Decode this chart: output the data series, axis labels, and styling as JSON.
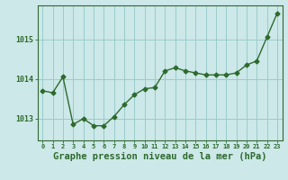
{
  "x": [
    0,
    1,
    2,
    3,
    4,
    5,
    6,
    7,
    8,
    9,
    10,
    11,
    12,
    13,
    14,
    15,
    16,
    17,
    18,
    19,
    20,
    21,
    22,
    23
  ],
  "y": [
    1013.7,
    1013.65,
    1014.05,
    1012.85,
    1013.0,
    1012.82,
    1012.82,
    1013.05,
    1013.35,
    1013.6,
    1013.75,
    1013.78,
    1014.2,
    1014.28,
    1014.2,
    1014.15,
    1014.1,
    1014.1,
    1014.1,
    1014.15,
    1014.35,
    1014.45,
    1015.05,
    1015.65
  ],
  "line_color": "#2d6a2d",
  "marker": "D",
  "marker_size": 2.5,
  "bg_color": "#cce8e8",
  "grid_color": "#99cccc",
  "axis_color": "#2d6a2d",
  "tick_label_color": "#2d6a2d",
  "xlabel": "Graphe pression niveau de la mer (hPa)",
  "xlabel_color": "#2d6a2d",
  "xlabel_fontsize": 7.5,
  "yticks": [
    1013,
    1014,
    1015
  ],
  "ylim": [
    1012.45,
    1015.85
  ],
  "xlim": [
    -0.5,
    23.5
  ],
  "spine_color": "#336633"
}
